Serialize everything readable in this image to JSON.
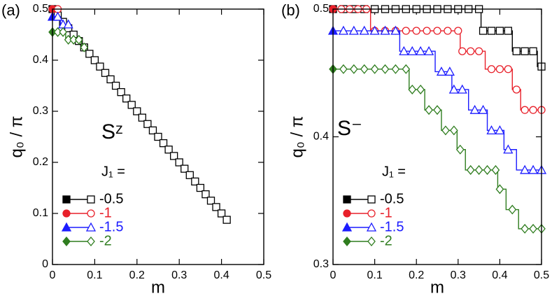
{
  "chart_data": [
    {
      "type": "line",
      "panel_label": "(a)",
      "annotation": "Sᶻ",
      "legend_title": "J₁ =",
      "xlabel": "m",
      "ylabel": "q₀ / π",
      "xlim": [
        0,
        0.5
      ],
      "ylim": [
        0,
        0.5
      ],
      "xticks": [
        0,
        0.1,
        0.2,
        0.3,
        0.4,
        0.5
      ],
      "yticks": [
        0,
        0.1,
        0.2,
        0.3,
        0.4,
        0.5
      ],
      "series": [
        {
          "name": "-0.5",
          "color": "#000000",
          "marker": "square",
          "x": [
            0,
            0.0125,
            0.025,
            0.0375,
            0.05,
            0.0625,
            0.075,
            0.0875,
            0.1,
            0.1125,
            0.125,
            0.1375,
            0.15,
            0.1625,
            0.175,
            0.1875,
            0.2,
            0.2125,
            0.225,
            0.2375,
            0.25,
            0.2625,
            0.275,
            0.2875,
            0.3,
            0.3125,
            0.325,
            0.3375,
            0.35,
            0.3625,
            0.375,
            0.3875,
            0.4,
            0.4125
          ],
          "values": [
            0.5,
            0.4875,
            0.475,
            0.4625,
            0.45,
            0.4375,
            0.425,
            0.4125,
            0.4,
            0.3875,
            0.375,
            0.3625,
            0.35,
            0.3375,
            0.325,
            0.3125,
            0.3,
            0.2875,
            0.275,
            0.2625,
            0.25,
            0.2375,
            0.225,
            0.2125,
            0.2,
            0.1875,
            0.175,
            0.1625,
            0.15,
            0.1375,
            0.125,
            0.1125,
            0.1,
            0.0875
          ]
        },
        {
          "name": "-1",
          "color": "#e8202a",
          "marker": "circle",
          "x": [
            0,
            0.0125
          ],
          "values": [
            0.5,
            0.5
          ]
        },
        {
          "name": "-1.5",
          "color": "#1c1cff",
          "marker": "triangle",
          "x": [
            0,
            0.0125,
            0.025,
            0.0375
          ],
          "values": [
            0.485,
            0.485,
            0.47,
            0.47
          ]
        },
        {
          "name": "-2",
          "color": "#2f7d1f",
          "marker": "diamond",
          "x": [
            0,
            0.0125,
            0.025,
            0.0375,
            0.05,
            0.0625,
            0.075
          ],
          "values": [
            0.455,
            0.455,
            0.455,
            0.44,
            0.44,
            0.44,
            0.425
          ]
        }
      ]
    },
    {
      "type": "line",
      "panel_label": "(b)",
      "annotation": "S⁻",
      "legend_title": "J₁ =",
      "xlabel": "m",
      "ylabel": "q₀ / π",
      "xlim": [
        0,
        0.5
      ],
      "ylim": [
        0.3,
        0.5
      ],
      "xticks": [
        0,
        0.1,
        0.2,
        0.3,
        0.4,
        0.5
      ],
      "yticks": [
        0.3,
        0.4,
        0.5
      ],
      "series": [
        {
          "name": "-0.5",
          "color": "#000000",
          "marker": "square",
          "x": [
            0,
            0.025,
            0.05,
            0.075,
            0.1,
            0.125,
            0.15,
            0.175,
            0.2,
            0.225,
            0.25,
            0.275,
            0.3,
            0.325,
            0.35,
            0.36,
            0.38,
            0.4,
            0.42,
            0.44,
            0.46,
            0.48,
            0.5
          ],
          "values": [
            0.5,
            0.5,
            0.5,
            0.5,
            0.5,
            0.5,
            0.5,
            0.5,
            0.5,
            0.5,
            0.5,
            0.5,
            0.5,
            0.5,
            0.5,
            0.483,
            0.483,
            0.483,
            0.483,
            0.467,
            0.467,
            0.467,
            0.455
          ]
        },
        {
          "name": "-1",
          "color": "#e8202a",
          "marker": "circle",
          "x": [
            0,
            0.02,
            0.04,
            0.06,
            0.08,
            0.1,
            0.125,
            0.15,
            0.175,
            0.2,
            0.225,
            0.25,
            0.275,
            0.3,
            0.31,
            0.33,
            0.35,
            0.38,
            0.4,
            0.42,
            0.44,
            0.46,
            0.48,
            0.5
          ],
          "values": [
            0.5,
            0.5,
            0.5,
            0.5,
            0.5,
            0.483,
            0.483,
            0.483,
            0.483,
            0.483,
            0.483,
            0.483,
            0.483,
            0.483,
            0.467,
            0.467,
            0.467,
            0.453,
            0.453,
            0.453,
            0.437,
            0.421,
            0.421,
            0.421
          ]
        },
        {
          "name": "-1.5",
          "color": "#1c1cff",
          "marker": "triangle",
          "x": [
            0,
            0.025,
            0.05,
            0.075,
            0.1,
            0.125,
            0.15,
            0.17,
            0.19,
            0.21,
            0.23,
            0.26,
            0.28,
            0.29,
            0.31,
            0.34,
            0.36,
            0.38,
            0.4,
            0.42,
            0.46,
            0.48,
            0.5
          ],
          "values": [
            0.483,
            0.483,
            0.483,
            0.483,
            0.483,
            0.483,
            0.483,
            0.467,
            0.467,
            0.467,
            0.467,
            0.451,
            0.451,
            0.437,
            0.437,
            0.421,
            0.421,
            0.405,
            0.405,
            0.39,
            0.374,
            0.374,
            0.374
          ]
        },
        {
          "name": "-2",
          "color": "#2f7d1f",
          "marker": "diamond",
          "x": [
            0,
            0.025,
            0.05,
            0.075,
            0.1,
            0.125,
            0.15,
            0.175,
            0.19,
            0.21,
            0.23,
            0.25,
            0.27,
            0.29,
            0.305,
            0.33,
            0.35,
            0.37,
            0.39,
            0.4,
            0.43,
            0.46,
            0.48,
            0.5
          ],
          "values": [
            0.453,
            0.453,
            0.453,
            0.453,
            0.453,
            0.453,
            0.453,
            0.453,
            0.437,
            0.437,
            0.421,
            0.421,
            0.405,
            0.405,
            0.39,
            0.374,
            0.374,
            0.374,
            0.374,
            0.359,
            0.343,
            0.328,
            0.328,
            0.328
          ]
        }
      ]
    }
  ]
}
